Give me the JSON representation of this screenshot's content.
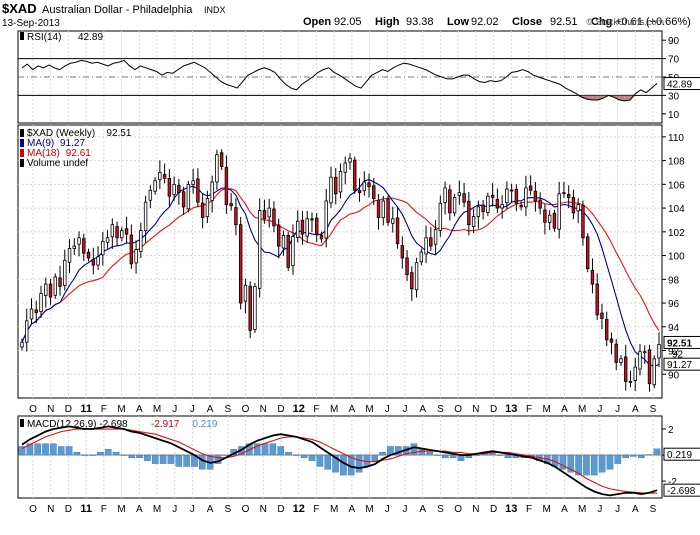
{
  "header": {
    "symbol": "$XAD",
    "name": "Australian Dollar - Philadelphia",
    "exchange": "INDX",
    "date": "13-Sep-2013",
    "ohlc": [
      {
        "label": "Open",
        "value": "92.05"
      },
      {
        "label": "High",
        "value": "93.38"
      },
      {
        "label": "Low",
        "value": "92.02"
      },
      {
        "label": "Close",
        "value": "92.51"
      },
      {
        "label": "Chg",
        "value": "+0.61 (+0.66%)"
      }
    ],
    "watermark": "© StockCharts.com",
    "colors": {
      "up": "#00aa00",
      "accent": "#000000"
    }
  },
  "chart_data": [
    {
      "type": "line",
      "panel": "rsi",
      "legend": [
        {
          "label": "RSI(14)",
          "value": "42.89"
        }
      ],
      "y_ticks": [
        10,
        30,
        50,
        70,
        90
      ],
      "ylim": [
        0,
        100
      ],
      "reference_lines": [
        30,
        70
      ],
      "last_value_label": "42.89",
      "series": [
        {
          "name": "RSI(14)",
          "color": "#000000",
          "values": [
            60,
            64,
            58,
            62,
            60,
            63,
            60,
            58,
            62,
            65,
            66,
            68,
            67,
            65,
            66,
            64,
            62,
            65,
            66,
            68,
            62,
            58,
            62,
            60,
            58,
            56,
            52,
            55,
            54,
            58,
            62,
            64,
            66,
            63,
            60,
            55,
            50,
            45,
            42,
            40,
            38,
            45,
            52,
            55,
            58,
            60,
            58,
            55,
            48,
            42,
            38,
            36,
            42,
            46,
            50,
            55,
            58,
            60,
            55,
            52,
            48,
            44,
            40,
            38,
            45,
            52,
            55,
            58,
            56,
            60,
            63,
            65,
            64,
            62,
            60,
            58,
            55,
            52,
            50,
            48,
            48,
            50,
            52,
            52,
            48,
            45,
            44,
            46,
            45,
            46,
            50,
            55,
            56,
            58,
            56,
            52,
            50,
            48,
            46,
            44,
            42,
            38,
            35,
            32,
            28,
            26,
            25,
            25,
            27,
            30,
            28,
            25,
            24,
            25,
            32,
            36,
            33,
            38,
            43
          ]
        }
      ]
    },
    {
      "type": "candlestick",
      "panel": "price",
      "legend": [
        {
          "label": "$XAD (Weekly)",
          "value": "92.51",
          "color": "#000000"
        },
        {
          "label": "MA(9)",
          "value": "91.27",
          "color": "#000080"
        },
        {
          "label": "MA(18)",
          "value": "92.61",
          "color": "#cc0000"
        },
        {
          "label": "Volume undef",
          "value": "",
          "color": "#000000"
        }
      ],
      "y_ticks": [
        90,
        92,
        94,
        96,
        98,
        100,
        102,
        104,
        106,
        108,
        110
      ],
      "ylim": [
        88,
        111
      ],
      "last_value_labels": [
        {
          "value": "92.51",
          "bold": true
        },
        {
          "value": "92",
          "bold": false
        },
        {
          "value": "91.27",
          "bold": false
        }
      ],
      "closes": [
        92.7,
        94.5,
        95.5,
        95.2,
        96.8,
        97.6,
        96.5,
        98.2,
        97.4,
        99.6,
        100.6,
        100.8,
        101.5,
        100.2,
        99.8,
        99.2,
        99.9,
        101.2,
        101.5,
        102.6,
        101.5,
        102.1,
        101.8,
        99.3,
        100.5,
        102.1,
        104.5,
        105.5,
        106.3,
        107,
        106.5,
        105,
        106,
        105.3,
        104.1,
        106,
        106.3,
        104.5,
        103.2,
        104.8,
        106.2,
        108.5,
        107.5,
        104.3,
        104.2,
        102.6,
        96,
        97.5,
        93.7,
        97.4,
        103.8,
        103.1,
        104,
        102.5,
        100.8,
        101.7,
        99,
        101.6,
        102.9,
        101.8,
        103.1,
        103,
        101.8,
        101.4,
        104.6,
        106.6,
        105.2,
        107.1,
        107.8,
        108.2,
        105.5,
        105.3,
        106.2,
        105.8,
        104.8,
        103.2,
        104.6,
        102.8,
        103.1,
        101,
        99.8,
        98.4,
        97.2,
        99.4,
        100.3,
        101.5,
        100.8,
        102.2,
        104.4,
        105.7,
        103.6,
        104.9,
        105.3,
        104.5,
        102.6,
        103.3,
        104.1,
        103.7,
        105,
        104.9,
        104,
        104.3,
        105.6,
        105.5,
        104.4,
        104.1,
        105.7,
        105.5,
        104.6,
        104,
        102.8,
        103.4,
        102.3,
        105.2,
        105.3,
        104.9,
        103.6,
        104.3,
        101.5,
        98.9,
        97.6,
        95,
        94.7,
        92.9,
        92.7,
        91,
        91.3,
        89.4,
        89.4,
        90.6,
        91.9,
        91.9,
        89.2,
        91.3,
        92.51
      ],
      "x_labels": [
        "O",
        "N",
        "D",
        "11",
        "F",
        "M",
        "A",
        "M",
        "J",
        "J",
        "A",
        "S",
        "O",
        "N",
        "D",
        "12",
        "F",
        "M",
        "A",
        "M",
        "J",
        "J",
        "A",
        "S",
        "O",
        "N",
        "D",
        "13",
        "F",
        "M",
        "A",
        "M",
        "J",
        "J",
        "A",
        "S"
      ]
    },
    {
      "type": "line",
      "panel": "macd",
      "legend": [
        {
          "label": "MACD(12,26,9)",
          "value": "-2.698",
          "color": "#000000"
        },
        {
          "label": "",
          "value": "-2.917",
          "color": "#cc0000"
        },
        {
          "label": "",
          "value": "0.219",
          "color": "#4a90c8"
        }
      ],
      "y_ticks": [
        2,
        0,
        -2
      ],
      "ylim": [
        -3.3,
        3.0
      ],
      "last_value_labels": [
        {
          "value": "0.219"
        },
        {
          "value": "-2.698"
        }
      ],
      "series": [
        {
          "name": "MACD(12,26,9)",
          "color": "#000000",
          "values": [
            0.8,
            1.2,
            1.5,
            1.8,
            2,
            2.1,
            2.2,
            2.1,
            2.0,
            2.0,
            2.1,
            2.2,
            2.1,
            2.0,
            1.8,
            1.7,
            1.5,
            1.3,
            1.1,
            0.9,
            0.6,
            0.3,
            0,
            -0.4,
            -0.6,
            -0.5,
            -0.2,
            0.1,
            0.4,
            0.8,
            1.1,
            1.3,
            1.5,
            1.6,
            1.5,
            1.4,
            1.2,
            1.0,
            0.6,
            0.2,
            -0.2,
            -0.6,
            -0.9,
            -1.0,
            -0.9,
            -0.7,
            -0.3,
            0,
            0.2,
            0.4,
            0.6,
            0.5,
            0.4,
            0.3,
            0.2,
            0.1,
            0,
            0,
            0.1,
            0.2,
            0.3,
            0.2,
            0.1,
            0,
            -0.1,
            -0.2,
            -0.4,
            -0.6,
            -0.9,
            -1.3,
            -1.7,
            -2.1,
            -2.5,
            -2.8,
            -3.0,
            -3.1,
            -3.0,
            -2.9,
            -2.9,
            -3.0,
            -2.9,
            -2.7
          ]
        },
        {
          "name": "Signal",
          "color": "#cc0000",
          "values": [
            0.5,
            0.8,
            1.1,
            1.4,
            1.6,
            1.8,
            1.9,
            2.0,
            2.0,
            2.0,
            2.0,
            2.0,
            2.0,
            2.0,
            1.9,
            1.8,
            1.7,
            1.6,
            1.4,
            1.2,
            1.0,
            0.7,
            0.4,
            0.1,
            -0.1,
            -0.2,
            -0.2,
            -0.1,
            0.1,
            0.4,
            0.7,
            0.9,
            1.1,
            1.3,
            1.4,
            1.4,
            1.3,
            1.2,
            1.0,
            0.7,
            0.4,
            0.1,
            -0.2,
            -0.4,
            -0.5,
            -0.5,
            -0.4,
            -0.3,
            -0.1,
            0.1,
            0.2,
            0.3,
            0.3,
            0.3,
            0.3,
            0.2,
            0.2,
            0.1,
            0.1,
            0.1,
            0.2,
            0.2,
            0.2,
            0.1,
            0,
            -0.1,
            -0.2,
            -0.3,
            -0.5,
            -0.8,
            -1.1,
            -1.4,
            -1.8,
            -2.1,
            -2.4,
            -2.6,
            -2.7,
            -2.8,
            -2.85,
            -2.9,
            -2.92,
            -2.917
          ]
        }
      ],
      "histogram_color": "#5b9bd5",
      "x_labels": [
        "O",
        "N",
        "D",
        "11",
        "F",
        "M",
        "A",
        "M",
        "J",
        "J",
        "A",
        "S",
        "O",
        "N",
        "D",
        "12",
        "F",
        "M",
        "A",
        "M",
        "J",
        "J",
        "A",
        "S",
        "O",
        "N",
        "D",
        "13",
        "F",
        "M",
        "A",
        "M",
        "J",
        "J",
        "A",
        "S"
      ]
    }
  ]
}
